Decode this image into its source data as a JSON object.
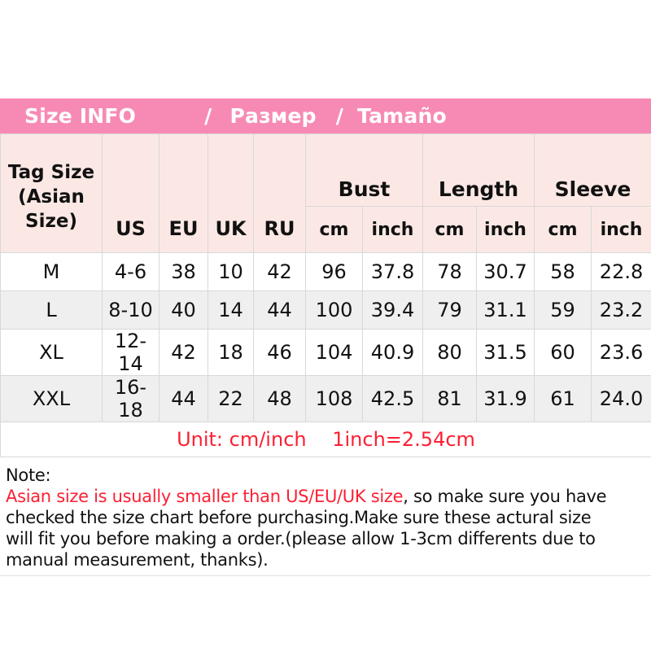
{
  "banner": {
    "title_en": "Size INFO",
    "sep1": "/",
    "title_ru": "Размер",
    "sep2": "/",
    "title_es": "Tamaño"
  },
  "table": {
    "corner_header": "Tag Size (Asian Size)",
    "size_columns": [
      "US",
      "EU",
      "UK",
      "RU"
    ],
    "measure_groups": [
      {
        "label": "Bust"
      },
      {
        "label": "Length"
      },
      {
        "label": "Sleeve"
      }
    ],
    "unit_subheaders": [
      "cm",
      "inch",
      "cm",
      "inch",
      "cm",
      "inch"
    ],
    "rows": [
      {
        "tag": "M",
        "values": [
          "4-6",
          "38",
          "10",
          "42",
          "96",
          "37.8",
          "78",
          "30.7",
          "58",
          "22.8"
        ]
      },
      {
        "tag": "L",
        "values": [
          "8-10",
          "40",
          "14",
          "44",
          "100",
          "39.4",
          "79",
          "31.1",
          "59",
          "23.2"
        ]
      },
      {
        "tag": "XL",
        "values": [
          "12-14",
          "42",
          "18",
          "46",
          "104",
          "40.9",
          "80",
          "31.5",
          "60",
          "23.6"
        ]
      },
      {
        "tag": "XXL",
        "values": [
          "16-18",
          "44",
          "22",
          "48",
          "108",
          "42.5",
          "81",
          "31.9",
          "61",
          "24.0"
        ]
      }
    ]
  },
  "unit_line": {
    "part1": "Unit: cm/inch",
    "part2": "1inch=2.54cm"
  },
  "note": {
    "lines": [
      [
        {
          "text": "Note:",
          "red": false
        }
      ],
      [
        {
          "text": "Asian size is usually smaller than US/EU/UK size",
          "red": true
        },
        {
          "text": ", so make sure you have",
          "red": false
        }
      ],
      [
        {
          "text": "checked the size chart before purchasing.Make sure these actural size",
          "red": false
        }
      ],
      [
        {
          "text": "will fit you before making a order.(please allow 1-3cm differents due to",
          "red": false
        }
      ],
      [
        {
          "text": "manual measurement, thanks).",
          "red": false
        }
      ]
    ]
  },
  "colors": {
    "banner_pink": "#f78ab5",
    "header_pink": "#fbe8e4",
    "alt_row_gray": "#efefef",
    "border_gray": "#d8d8d8",
    "accent_red": "#fc2033",
    "text": "#111111"
  },
  "chart_data": {
    "type": "table",
    "title": "Size INFO / Размер / Tamaño",
    "columns": [
      "Tag Size (Asian Size)",
      "US",
      "EU",
      "UK",
      "RU",
      "Bust cm",
      "Bust inch",
      "Length cm",
      "Length inch",
      "Sleeve cm",
      "Sleeve inch"
    ],
    "rows": [
      [
        "M",
        "4-6",
        "38",
        "10",
        "42",
        "96",
        "37.8",
        "78",
        "30.7",
        "58",
        "22.8"
      ],
      [
        "L",
        "8-10",
        "40",
        "14",
        "44",
        "100",
        "39.4",
        "79",
        "31.1",
        "59",
        "23.2"
      ],
      [
        "XL",
        "12-14",
        "42",
        "18",
        "46",
        "104",
        "40.9",
        "80",
        "31.5",
        "60",
        "23.6"
      ],
      [
        "XXL",
        "16-18",
        "44",
        "22",
        "48",
        "108",
        "42.5",
        "81",
        "31.9",
        "61",
        "24.0"
      ]
    ],
    "footnote": "Unit: cm/inch 1inch=2.54cm"
  }
}
